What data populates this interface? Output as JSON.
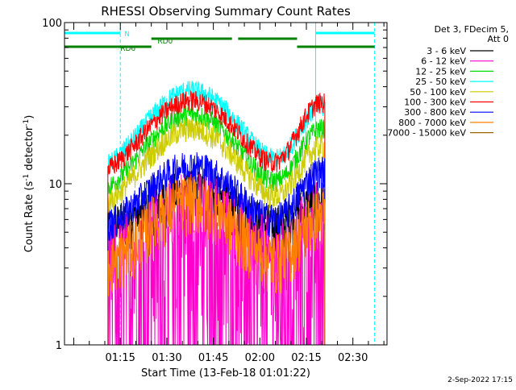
{
  "chart_data": {
    "type": "line",
    "title": "RHESSI Observing Summary Count Rates",
    "xlabel": "Start Time (13-Feb-18 01:01:22)",
    "ylabel_main": "Count Rate (s",
    "ylabel_sup1": "-1",
    "ylabel_mid": " detector",
    "ylabel_sup2": "-1",
    "ylabel_end": ")",
    "ylabel": "Count Rate (s-1 detector-1)",
    "y_scale": "log",
    "ylim": [
      1,
      100
    ],
    "xlim": [
      "00:57",
      "02:41"
    ],
    "x_ticks": [
      "01:15",
      "01:30",
      "01:45",
      "02:00",
      "02:15",
      "02:30"
    ],
    "y_ticks": [
      "1",
      "10",
      "100"
    ],
    "grid": false,
    "legend_header": [
      "Det 3, FDecim 5,",
      "Att 0"
    ],
    "legend_placement": "right",
    "date_stamp": "2-Sep-2022 17:15",
    "series": [
      {
        "name": "3 - 6 keV",
        "color": "#000000",
        "peak": 9,
        "base": 5.0,
        "end": 8,
        "noise": 0.12
      },
      {
        "name": "6 - 12 keV",
        "color": "#ff00cc",
        "peak": 6,
        "base": 2.5,
        "end": 5,
        "noise": 0.38
      },
      {
        "name": "12 - 25 keV",
        "color": "#00dd00",
        "peak": 27,
        "base": 8.0,
        "end": 22,
        "noise": 0.05
      },
      {
        "name": "25 - 50 keV",
        "color": "#00ffff",
        "peak": 38,
        "base": 11.0,
        "end": 30,
        "noise": 0.05
      },
      {
        "name": "50 - 100 keV",
        "color": "#cccc00",
        "peak": 22,
        "base": 6.5,
        "end": 17,
        "noise": 0.06
      },
      {
        "name": "100 - 300 keV",
        "color": "#ff0000",
        "peak": 33,
        "base": 10.5,
        "end": 32,
        "noise": 0.05
      },
      {
        "name": "300 - 800 keV",
        "color": "#0000ff",
        "peak": 13,
        "base": 5.0,
        "end": 12,
        "noise": 0.08
      },
      {
        "name": "800 - 7000 keV",
        "color": "#ff7f00",
        "peak": 8,
        "base": 2.8,
        "end": 6.5,
        "noise": 0.14
      },
      {
        "name": "7000 - 15000 keV",
        "color": "#996600",
        "peak": 0,
        "base": 0,
        "end": 0,
        "noise": 0
      }
    ],
    "data_window": [
      "01:11",
      "02:21"
    ],
    "status_bars": [
      {
        "label": "N",
        "color": "#00ffff",
        "segments": [
          [
            "00:57",
            "01:15"
          ],
          [
            "02:18",
            "02:37"
          ]
        ]
      },
      {
        "label": "RD0",
        "color": "#008000",
        "segments": [
          [
            "01:25",
            "01:51"
          ],
          [
            "01:53",
            "02:12"
          ]
        ]
      },
      {
        "label": "RD6",
        "color": "#008000",
        "segments": [
          [
            "00:57",
            "01:25"
          ],
          [
            "02:12",
            "02:37"
          ]
        ]
      }
    ],
    "vertical_markers": [
      {
        "time": "00:57",
        "color": "#00ffff",
        "style": "solid"
      },
      {
        "time": "01:15",
        "color": "#00ffff",
        "style": "dashed"
      },
      {
        "time": "02:18",
        "color": "#00ffff",
        "style": "solid"
      },
      {
        "time": "02:37",
        "color": "#00ffff",
        "style": "dashed"
      }
    ]
  }
}
